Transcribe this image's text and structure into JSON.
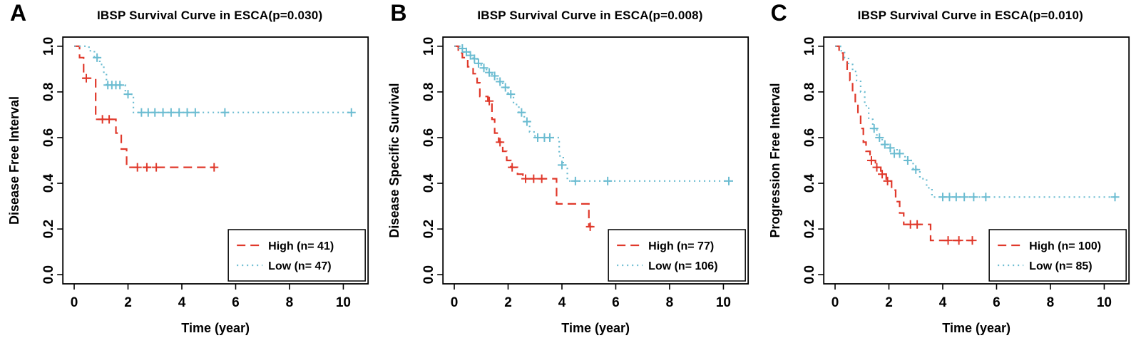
{
  "figure": {
    "background": "#ffffff"
  },
  "chart_data": [
    {
      "type": "line",
      "subtype": "kaplan-meier-step",
      "panel_label": "A",
      "title": "IBSP Survival Curve in ESCA(p=0.030)",
      "xlabel": "Time (year)",
      "ylabel": "Disease Free Interval",
      "xlim": [
        0,
        10.5
      ],
      "ylim": [
        0,
        1
      ],
      "xticks": [
        0,
        2,
        4,
        6,
        8,
        10
      ],
      "yticks": [
        "0.0",
        "0.2",
        "0.4",
        "0.6",
        "0.8",
        "1.0"
      ],
      "grid": false,
      "legend_position": "bottom-right",
      "series": [
        {
          "name": "High (n= 41)",
          "color": "#e0392b",
          "dash": "12,7",
          "steps": [
            [
              0,
              1.0
            ],
            [
              0.2,
              0.95
            ],
            [
              0.35,
              0.86
            ],
            [
              0.8,
              0.68
            ],
            [
              1.55,
              0.62
            ],
            [
              1.75,
              0.55
            ],
            [
              1.95,
              0.47
            ],
            [
              5.2,
              0.47
            ]
          ],
          "censors": [
            [
              0.45,
              0.86
            ],
            [
              1.05,
              0.68
            ],
            [
              1.3,
              0.68
            ],
            [
              2.35,
              0.47
            ],
            [
              2.7,
              0.47
            ],
            [
              3.05,
              0.47
            ],
            [
              5.2,
              0.47
            ]
          ]
        },
        {
          "name": "Low  (n= 47)",
          "color": "#6bbcd1",
          "dash": "2,5",
          "steps": [
            [
              0,
              1.0
            ],
            [
              0.55,
              0.98
            ],
            [
              0.75,
              0.95
            ],
            [
              0.95,
              0.92
            ],
            [
              1.1,
              0.88
            ],
            [
              1.2,
              0.83
            ],
            [
              1.9,
              0.79
            ],
            [
              2.2,
              0.71
            ],
            [
              10.3,
              0.71
            ]
          ],
          "censors": [
            [
              0.85,
              0.95
            ],
            [
              1.25,
              0.83
            ],
            [
              1.4,
              0.83
            ],
            [
              1.55,
              0.83
            ],
            [
              1.7,
              0.83
            ],
            [
              2.0,
              0.79
            ],
            [
              2.5,
              0.71
            ],
            [
              2.75,
              0.71
            ],
            [
              3.0,
              0.71
            ],
            [
              3.3,
              0.71
            ],
            [
              3.6,
              0.71
            ],
            [
              3.9,
              0.71
            ],
            [
              4.2,
              0.71
            ],
            [
              4.5,
              0.71
            ],
            [
              5.6,
              0.71
            ],
            [
              10.3,
              0.71
            ]
          ]
        }
      ]
    },
    {
      "type": "line",
      "subtype": "kaplan-meier-step",
      "panel_label": "B",
      "title": "IBSP Survival Curve in ESCA(p=0.008)",
      "xlabel": "Time (year)",
      "ylabel": "Disease Specific Survival",
      "xlim": [
        0,
        10.5
      ],
      "ylim": [
        0,
        1
      ],
      "xticks": [
        0,
        2,
        4,
        6,
        8,
        10
      ],
      "yticks": [
        "0.0",
        "0.2",
        "0.4",
        "0.6",
        "0.8",
        "1.0"
      ],
      "grid": false,
      "legend_position": "bottom-right",
      "series": [
        {
          "name": "High (n= 77)",
          "color": "#e0392b",
          "dash": "12,7",
          "steps": [
            [
              0,
              1.0
            ],
            [
              0.15,
              0.97
            ],
            [
              0.3,
              0.95
            ],
            [
              0.5,
              0.91
            ],
            [
              0.7,
              0.88
            ],
            [
              0.85,
              0.84
            ],
            [
              0.95,
              0.78
            ],
            [
              1.25,
              0.76
            ],
            [
              1.4,
              0.68
            ],
            [
              1.5,
              0.62
            ],
            [
              1.65,
              0.58
            ],
            [
              1.8,
              0.54
            ],
            [
              1.95,
              0.5
            ],
            [
              2.1,
              0.47
            ],
            [
              2.35,
              0.44
            ],
            [
              2.55,
              0.42
            ],
            [
              3.6,
              0.42
            ],
            [
              3.8,
              0.31
            ],
            [
              4.85,
              0.31
            ],
            [
              5.0,
              0.21
            ],
            [
              5.15,
              0.21
            ]
          ],
          "censors": [
            [
              1.3,
              0.76
            ],
            [
              1.7,
              0.58
            ],
            [
              2.15,
              0.47
            ],
            [
              2.65,
              0.42
            ],
            [
              2.95,
              0.42
            ],
            [
              3.25,
              0.42
            ],
            [
              5.05,
              0.21
            ]
          ]
        },
        {
          "name": "Low  (n= 106)",
          "color": "#6bbcd1",
          "dash": "2,5",
          "steps": [
            [
              0,
              1.0
            ],
            [
              0.2,
              0.99
            ],
            [
              0.35,
              0.975
            ],
            [
              0.55,
              0.96
            ],
            [
              0.7,
              0.945
            ],
            [
              0.85,
              0.925
            ],
            [
              1.0,
              0.905
            ],
            [
              1.2,
              0.885
            ],
            [
              1.4,
              0.87
            ],
            [
              1.6,
              0.845
            ],
            [
              1.8,
              0.82
            ],
            [
              2.0,
              0.79
            ],
            [
              2.2,
              0.745
            ],
            [
              2.4,
              0.71
            ],
            [
              2.6,
              0.67
            ],
            [
              2.8,
              0.625
            ],
            [
              3.0,
              0.6
            ],
            [
              3.7,
              0.6
            ],
            [
              3.9,
              0.52
            ],
            [
              4.05,
              0.48
            ],
            [
              4.2,
              0.41
            ],
            [
              10.2,
              0.41
            ]
          ],
          "censors": [
            [
              0.3,
              0.99
            ],
            [
              0.45,
              0.975
            ],
            [
              0.6,
              0.96
            ],
            [
              0.75,
              0.945
            ],
            [
              0.9,
              0.925
            ],
            [
              1.1,
              0.905
            ],
            [
              1.3,
              0.885
            ],
            [
              1.5,
              0.87
            ],
            [
              1.7,
              0.845
            ],
            [
              1.9,
              0.82
            ],
            [
              2.1,
              0.79
            ],
            [
              2.5,
              0.71
            ],
            [
              2.7,
              0.67
            ],
            [
              3.1,
              0.6
            ],
            [
              3.35,
              0.6
            ],
            [
              3.55,
              0.6
            ],
            [
              4.0,
              0.48
            ],
            [
              4.5,
              0.41
            ],
            [
              5.7,
              0.41
            ],
            [
              10.2,
              0.41
            ]
          ]
        }
      ]
    },
    {
      "type": "line",
      "subtype": "kaplan-meier-step",
      "panel_label": "C",
      "title": "IBSP Survival Curve in ESCA(p=0.010)",
      "xlabel": "Time (year)",
      "ylabel": "Progression Free Interval",
      "xlim": [
        0,
        10.5
      ],
      "ylim": [
        0,
        1
      ],
      "xticks": [
        0,
        2,
        4,
        6,
        8,
        10
      ],
      "yticks": [
        "0.0",
        "0.2",
        "0.4",
        "0.6",
        "0.8",
        "1.0"
      ],
      "grid": false,
      "legend_position": "bottom-right",
      "series": [
        {
          "name": "High (n= 100)",
          "color": "#e0392b",
          "dash": "12,7",
          "steps": [
            [
              0,
              1.0
            ],
            [
              0.15,
              0.97
            ],
            [
              0.3,
              0.94
            ],
            [
              0.45,
              0.9
            ],
            [
              0.55,
              0.85
            ],
            [
              0.65,
              0.8
            ],
            [
              0.75,
              0.75
            ],
            [
              0.85,
              0.7
            ],
            [
              0.95,
              0.64
            ],
            [
              1.05,
              0.58
            ],
            [
              1.15,
              0.54
            ],
            [
              1.3,
              0.5
            ],
            [
              1.5,
              0.47
            ],
            [
              1.7,
              0.44
            ],
            [
              1.9,
              0.41
            ],
            [
              2.1,
              0.37
            ],
            [
              2.25,
              0.32
            ],
            [
              2.4,
              0.27
            ],
            [
              2.55,
              0.22
            ],
            [
              3.4,
              0.22
            ],
            [
              3.55,
              0.15
            ],
            [
              5.1,
              0.15
            ]
          ],
          "censors": [
            [
              1.35,
              0.5
            ],
            [
              1.55,
              0.47
            ],
            [
              1.75,
              0.44
            ],
            [
              1.95,
              0.41
            ],
            [
              2.8,
              0.22
            ],
            [
              3.05,
              0.22
            ],
            [
              4.2,
              0.15
            ],
            [
              4.6,
              0.15
            ],
            [
              5.1,
              0.15
            ]
          ]
        },
        {
          "name": "Low  (n= 85)",
          "color": "#6bbcd1",
          "dash": "2,5",
          "steps": [
            [
              0,
              1.0
            ],
            [
              0.2,
              0.98
            ],
            [
              0.35,
              0.95
            ],
            [
              0.5,
              0.92
            ],
            [
              0.65,
              0.89
            ],
            [
              0.8,
              0.85
            ],
            [
              0.95,
              0.8
            ],
            [
              1.1,
              0.74
            ],
            [
              1.25,
              0.68
            ],
            [
              1.4,
              0.64
            ],
            [
              1.55,
              0.6
            ],
            [
              1.75,
              0.57
            ],
            [
              2.0,
              0.555
            ],
            [
              2.3,
              0.53
            ],
            [
              2.6,
              0.5
            ],
            [
              2.9,
              0.46
            ],
            [
              3.15,
              0.42
            ],
            [
              3.4,
              0.38
            ],
            [
              3.6,
              0.34
            ],
            [
              10.4,
              0.34
            ]
          ],
          "censors": [
            [
              1.45,
              0.64
            ],
            [
              1.65,
              0.6
            ],
            [
              1.85,
              0.57
            ],
            [
              2.05,
              0.555
            ],
            [
              2.2,
              0.53
            ],
            [
              2.4,
              0.53
            ],
            [
              2.7,
              0.5
            ],
            [
              3.0,
              0.46
            ],
            [
              4.0,
              0.34
            ],
            [
              4.25,
              0.34
            ],
            [
              4.5,
              0.34
            ],
            [
              4.8,
              0.34
            ],
            [
              5.15,
              0.34
            ],
            [
              5.6,
              0.34
            ],
            [
              10.4,
              0.34
            ]
          ]
        }
      ]
    }
  ]
}
